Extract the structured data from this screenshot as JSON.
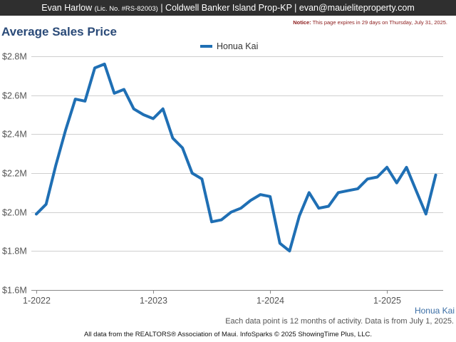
{
  "header": {
    "agent_name": "Evan Harlow",
    "license": "(Lic. No. #RS-82003)",
    "brokerage": "| Coldwell Banker Island Prop-KP |",
    "email": "evan@mauieliteproperty.com"
  },
  "notice": {
    "label": "Notice:",
    "text": "This page expires in 29 days on Thursday, July 31, 2025."
  },
  "footer": {
    "source_label": "Honua Kai",
    "note": "Each data point is 12 months of activity. Data is from July 1, 2025.",
    "copyright": "All data from the REALTORS® Association of Maui. InfoSparks © 2025 ShowingTime Plus, LLC."
  },
  "chart_data": {
    "type": "line",
    "title": "Average Sales Price",
    "xlabel": "",
    "ylabel": "",
    "ylim": [
      1.6,
      2.8
    ],
    "y_unit": "millions USD",
    "y_ticks": [
      1.6,
      1.8,
      2.0,
      2.2,
      2.4,
      2.6,
      2.8
    ],
    "y_tick_labels": [
      "$1.6M",
      "$1.8M",
      "$2.0M",
      "$2.2M",
      "$2.4M",
      "$2.6M",
      "$2.8M"
    ],
    "x_tick_labels": [
      "1-2022",
      "1-2023",
      "1-2024",
      "1-2025"
    ],
    "x_start": "2022-01",
    "x_end": "2025-06",
    "grid": true,
    "legend_position": "top-center",
    "series": [
      {
        "name": "Honua Kai",
        "color": "#1f6fb4",
        "x": [
          "2022-01",
          "2022-02",
          "2022-03",
          "2022-04",
          "2022-05",
          "2022-06",
          "2022-07",
          "2022-08",
          "2022-09",
          "2022-10",
          "2022-11",
          "2022-12",
          "2023-01",
          "2023-02",
          "2023-03",
          "2023-04",
          "2023-05",
          "2023-06",
          "2023-07",
          "2023-08",
          "2023-09",
          "2023-10",
          "2023-11",
          "2023-12",
          "2024-01",
          "2024-02",
          "2024-03",
          "2024-04",
          "2024-05",
          "2024-06",
          "2024-07",
          "2024-08",
          "2024-09",
          "2024-10",
          "2024-11",
          "2024-12",
          "2025-01",
          "2025-02",
          "2025-03",
          "2025-04",
          "2025-05",
          "2025-06"
        ],
        "values": [
          1.99,
          2.04,
          2.24,
          2.42,
          2.58,
          2.57,
          2.74,
          2.76,
          2.61,
          2.63,
          2.53,
          2.5,
          2.48,
          2.53,
          2.38,
          2.33,
          2.2,
          2.17,
          1.95,
          1.96,
          2.0,
          2.02,
          2.06,
          2.09,
          2.08,
          1.84,
          1.8,
          1.98,
          2.1,
          2.02,
          2.03,
          2.1,
          2.11,
          2.12,
          2.17,
          2.18,
          2.23,
          2.15,
          2.23,
          2.11,
          1.99,
          2.19
        ]
      }
    ]
  }
}
